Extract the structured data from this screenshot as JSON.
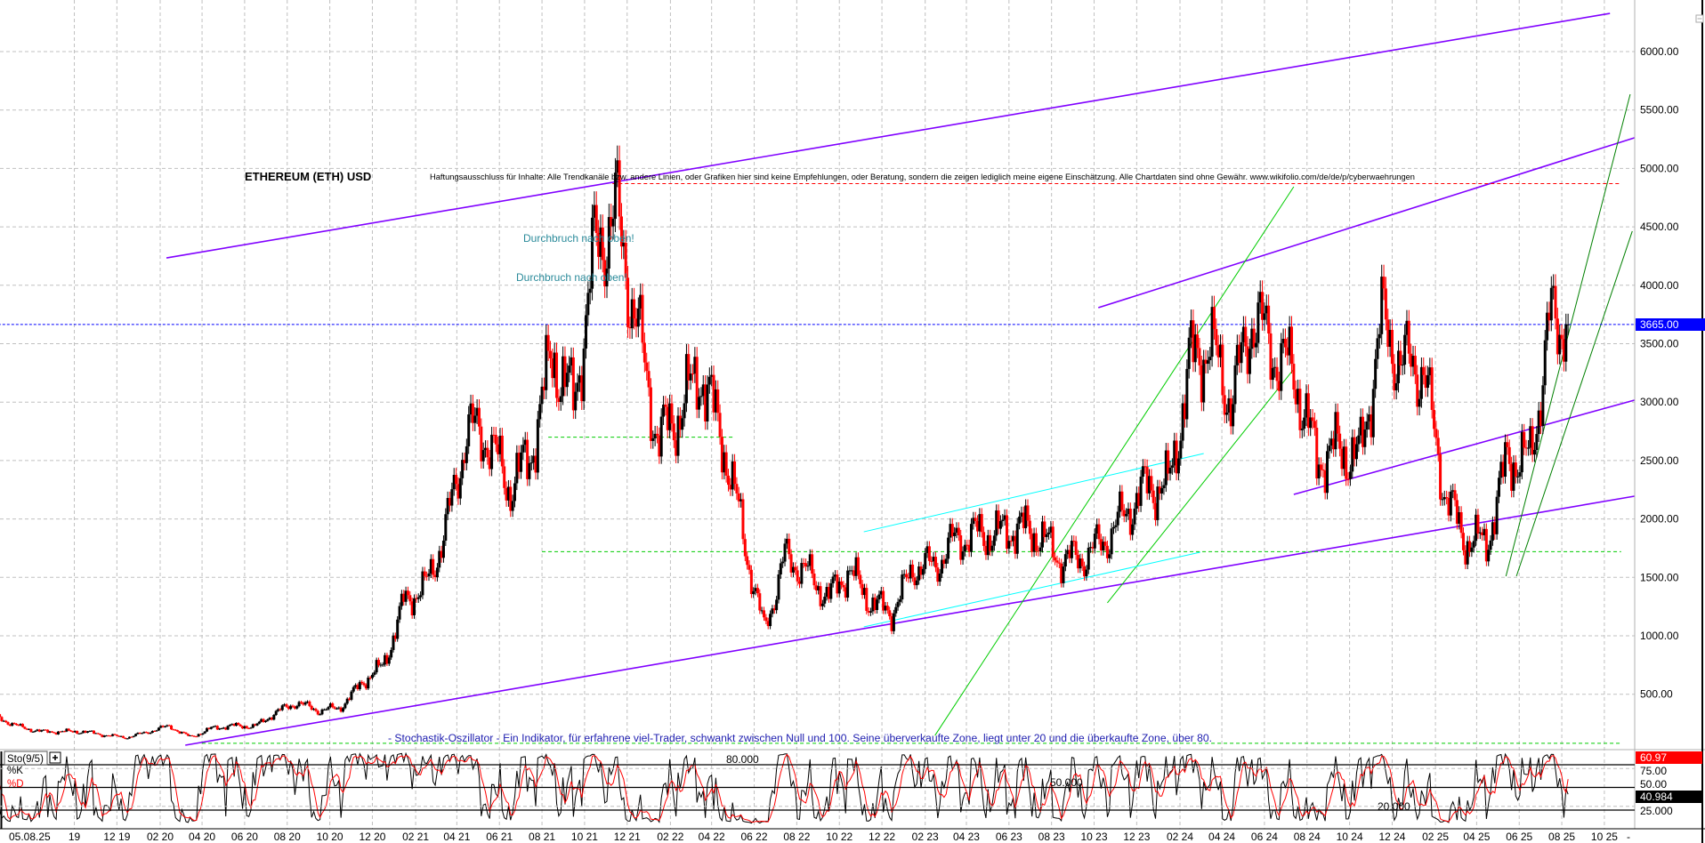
{
  "chart_data": {
    "type": "candlestick",
    "title": "ETHEREUM (ETH) USD",
    "disclaimer": "Haftungsausschluss für Inhalte: Alle Trendkanäle bzw. andere Linien, oder Grafiken hier sind keine Empfehlungen, oder Beratung, sondern die zeigen lediglich meine eigene Einschätzung. Alle Chartdaten sind ohne Gewähr.  www.wikifolio.com/de/de/p/cyberwaehrungen",
    "annotations": [
      "Durchbruch nach oben!",
      "Durchbruch nach oben!"
    ],
    "indicator_note": "- Stochastik-Oszillator - Ein Indikator, für erfahrene viel-Trader, schwankt zwischen Null und 100. Seine überverkaufte Zone, liegt unter 20 und die überkaufte Zone, über 80.",
    "ylim": [
      0,
      6300
    ],
    "y_ticks": [
      "500.00",
      "1000.00",
      "1500.00",
      "2000.00",
      "2500.00",
      "3000.00",
      "3500.00",
      "4000.00",
      "4500.00",
      "5000.00",
      "5500.00",
      "6000.00"
    ],
    "last_price": "3665.00",
    "x_start_label": "05.08.25",
    "x_ticks": [
      {
        "label": "19",
        "date": "2019-10-01"
      },
      {
        "label": "12 19",
        "date": "2019-12-01"
      },
      {
        "label": "02 20",
        "date": "2020-02-01"
      },
      {
        "label": "04 20",
        "date": "2020-04-01"
      },
      {
        "label": "06 20",
        "date": "2020-06-01"
      },
      {
        "label": "08 20",
        "date": "2020-08-01"
      },
      {
        "label": "10 20",
        "date": "2020-10-01"
      },
      {
        "label": "12 20",
        "date": "2020-12-01"
      },
      {
        "label": "02 21",
        "date": "2021-02-01"
      },
      {
        "label": "04 21",
        "date": "2021-04-01"
      },
      {
        "label": "06 21",
        "date": "2021-06-01"
      },
      {
        "label": "08 21",
        "date": "2021-08-01"
      },
      {
        "label": "10 21",
        "date": "2021-10-01"
      },
      {
        "label": "12 21",
        "date": "2021-12-01"
      },
      {
        "label": "02 22",
        "date": "2022-02-01"
      },
      {
        "label": "04 22",
        "date": "2022-04-01"
      },
      {
        "label": "06 22",
        "date": "2022-06-01"
      },
      {
        "label": "08 22",
        "date": "2022-08-01"
      },
      {
        "label": "10 22",
        "date": "2022-10-01"
      },
      {
        "label": "12 22",
        "date": "2022-12-01"
      },
      {
        "label": "02 23",
        "date": "2023-02-01"
      },
      {
        "label": "04 23",
        "date": "2023-04-01"
      },
      {
        "label": "06 23",
        "date": "2023-06-01"
      },
      {
        "label": "08 23",
        "date": "2023-08-01"
      },
      {
        "label": "10 23",
        "date": "2023-10-01"
      },
      {
        "label": "12 23",
        "date": "2023-12-01"
      },
      {
        "label": "02 24",
        "date": "2024-02-01"
      },
      {
        "label": "04 24",
        "date": "2024-04-01"
      },
      {
        "label": "06 24",
        "date": "2024-06-01"
      },
      {
        "label": "08 24",
        "date": "2024-08-01"
      },
      {
        "label": "10 24",
        "date": "2024-10-01"
      },
      {
        "label": "12 24",
        "date": "2024-12-01"
      },
      {
        "label": "02 25",
        "date": "2025-02-01"
      },
      {
        "label": "04 25",
        "date": "2025-04-01"
      },
      {
        "label": "06 25",
        "date": "2025-06-01"
      },
      {
        "label": "08 25",
        "date": "2025-08-01"
      },
      {
        "label": "10 25",
        "date": "2025-10-01"
      }
    ],
    "x_end_label": "-",
    "monthly_closes": {
      "months": [
        "2019-06",
        "2019-07",
        "2019-08",
        "2019-09",
        "2019-10",
        "2019-11",
        "2019-12",
        "2020-01",
        "2020-02",
        "2020-03",
        "2020-04",
        "2020-05",
        "2020-06",
        "2020-07",
        "2020-08",
        "2020-09",
        "2020-10",
        "2020-11",
        "2020-12",
        "2021-01",
        "2021-02",
        "2021-03",
        "2021-04",
        "2021-05",
        "2021-06",
        "2021-07",
        "2021-08",
        "2021-09",
        "2021-10",
        "2021-11",
        "2021-12",
        "2022-01",
        "2022-02",
        "2022-03",
        "2022-04",
        "2022-05",
        "2022-06",
        "2022-07",
        "2022-08",
        "2022-09",
        "2022-10",
        "2022-11",
        "2022-12",
        "2023-01",
        "2023-02",
        "2023-03",
        "2023-04",
        "2023-05",
        "2023-06",
        "2023-07",
        "2023-08",
        "2023-09",
        "2023-10",
        "2023-11",
        "2023-12",
        "2024-01",
        "2024-02",
        "2024-03",
        "2024-04",
        "2024-05",
        "2024-06",
        "2024-07",
        "2024-08",
        "2024-09",
        "2024-10",
        "2024-11",
        "2024-12",
        "2025-01",
        "2025-02",
        "2025-03",
        "2025-04",
        "2025-05",
        "2025-06",
        "2025-07",
        "2025-08"
      ],
      "values": [
        300,
        220,
        180,
        180,
        180,
        150,
        130,
        180,
        230,
        135,
        210,
        230,
        225,
        345,
        430,
        360,
        385,
        600,
        740,
        1300,
        1420,
        1900,
        2770,
        2700,
        2270,
        2540,
        3430,
        3000,
        4300,
        4630,
        3680,
        2680,
        2920,
        3280,
        2730,
        1940,
        1070,
        1680,
        1550,
        1330,
        1570,
        1290,
        1200,
        1590,
        1600,
        1820,
        1870,
        1870,
        1930,
        1860,
        1650,
        1670,
        1810,
        2050,
        2280,
        2280,
        3340,
        3500,
        3010,
        3760,
        3430,
        3230,
        2510,
        2600,
        2520,
        3700,
        3330,
        3300,
        2230,
        1820,
        1800,
        2530,
        2490,
        3700,
        3665
      ]
    },
    "trend_lines": [
      {
        "color": "#8000ff",
        "style": "solid",
        "from": [
          "2020-02-10",
          4234
        ],
        "to": [
          "2025-10-09",
          6327
        ]
      },
      {
        "color": "#8000ff",
        "style": "solid",
        "from": [
          "2023-10-07",
          3808
        ],
        "to": [
          "2025-11-13",
          5262
        ]
      },
      {
        "color": "#8000ff",
        "style": "solid",
        "from": [
          "2020-03-08",
          64
        ],
        "to": [
          "2025-11-13",
          2195
        ]
      },
      {
        "color": "#8000ff",
        "style": "solid",
        "from": [
          "2024-07-13",
          2210
        ],
        "to": [
          "2025-11-13",
          3017
        ]
      },
      {
        "color": "#00cc00",
        "style": "solid",
        "from": [
          "2023-02-15",
          147
        ],
        "to": [
          "2024-07-13",
          4843
        ]
      },
      {
        "color": "#00cc00",
        "style": "solid",
        "from": [
          "2023-10-20",
          1282
        ],
        "to": [
          "2024-07-13",
          3283
        ]
      },
      {
        "color": "#008000",
        "style": "solid",
        "from": [
          "2025-05-13",
          1510
        ],
        "to": [
          "2025-11-07",
          5635
        ]
      },
      {
        "color": "#008000",
        "style": "solid",
        "from": [
          "2025-05-28",
          1510
        ],
        "to": [
          "2025-11-10",
          4463
        ]
      },
      {
        "color": "#00ffff",
        "style": "solid",
        "from": [
          "2022-11-05",
          1890
        ],
        "to": [
          "2024-03-06",
          2560
        ]
      },
      {
        "color": "#00ffff",
        "style": "solid",
        "from": [
          "2022-11-05",
          1076
        ],
        "to": [
          "2024-03-01",
          1715
        ]
      },
      {
        "color": "#ff0000",
        "style": "dashed",
        "from": [
          "2021-11-10",
          4870
        ],
        "to": [
          "2025-10-25",
          4870
        ]
      },
      {
        "color": "#00cc00",
        "style": "dashed",
        "from": [
          "2021-08-01",
          1720
        ],
        "to": [
          "2025-10-25",
          1720
        ]
      },
      {
        "color": "#00cc00",
        "style": "dashed",
        "from": [
          "2021-08-10",
          2700
        ],
        "to": [
          "2022-05-01",
          2700
        ]
      },
      {
        "color": "#00cc00",
        "style": "dashed",
        "from": [
          "2020-04-01",
          80
        ],
        "to": [
          "2025-10-25",
          80
        ]
      },
      {
        "color": "#0000ff",
        "style": "dotted",
        "from": [
          "2019-06-01",
          3665
        ],
        "to": [
          "2025-11-20",
          3665
        ]
      }
    ],
    "stochastic": {
      "label": "Sto(9/5)",
      "k_label": "%K",
      "d_label": "%D",
      "level_labels": [
        "80.000",
        "50.000",
        "20.000"
      ],
      "axis_labels": [
        "75.00",
        "50.00",
        "25.000"
      ],
      "d_value": "60.97",
      "k_value": "40.984"
    },
    "colors": {
      "up": "#000000",
      "down": "#ff0000",
      "k_line": "#000000",
      "d_line": "#ff0000",
      "last_price_bg": "#0000ff"
    }
  }
}
